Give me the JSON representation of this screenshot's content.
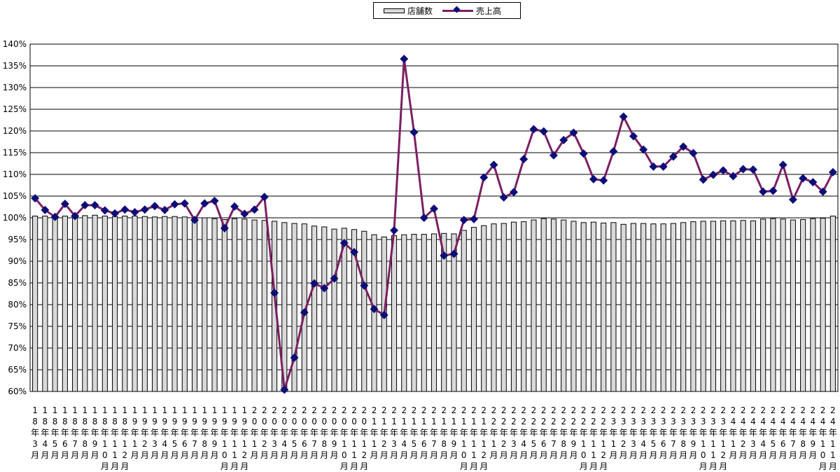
{
  "chart_data": {
    "type": "bar+line",
    "title": "",
    "xlabel": "",
    "ylabel": "",
    "ylim": [
      60,
      140
    ],
    "y_ticks": [
      "60%",
      "65%",
      "70%",
      "75%",
      "80%",
      "85%",
      "90%",
      "95%",
      "100%",
      "105%",
      "110%",
      "115%",
      "120%",
      "125%",
      "130%",
      "135%",
      "140%"
    ],
    "grid": true,
    "legend_position": "top-center",
    "colors": {
      "bar_fill": "#d9d9d9",
      "bar_stroke": "#000000",
      "line": "#7b1f62",
      "marker": "#0d0d78"
    },
    "categories": [
      "18年3月",
      "18年4月",
      "18年5月",
      "18年6月",
      "18年7月",
      "18年8月",
      "18年9月",
      "18年10月",
      "18年11月",
      "18年12月",
      "19年1月",
      "19年2月",
      "19年3月",
      "19年4月",
      "19年5月",
      "19年6月",
      "19年7月",
      "19年8月",
      "19年9月",
      "19年10月",
      "19年11月",
      "19年12月",
      "20年1月",
      "20年2月",
      "20年3月",
      "20年4月",
      "20年5月",
      "20年6月",
      "20年7月",
      "20年8月",
      "20年9月",
      "20年10月",
      "20年11月",
      "20年12月",
      "21年1月",
      "21年2月",
      "21年3月",
      "21年4月",
      "21年5月",
      "21年6月",
      "21年7月",
      "21年8月",
      "21年9月",
      "21年10月",
      "21年11月",
      "21年12月",
      "22年1月",
      "22年2月",
      "22年3月",
      "22年4月",
      "22年5月",
      "22年6月",
      "22年7月",
      "22年8月",
      "22年9月",
      "22年10月",
      "22年11月",
      "22年12月",
      "23年1月",
      "23年2月",
      "23年3月",
      "23年4月",
      "23年5月",
      "23年6月",
      "23年7月",
      "23年8月",
      "23年9月",
      "23年10月",
      "23年11月",
      "23年12月",
      "24年1月",
      "24年2月",
      "24年3月",
      "24年4月",
      "24年5月",
      "24年6月",
      "24年7月",
      "24年8月",
      "24年9月",
      "24年10月",
      "24年11月"
    ],
    "series": [
      {
        "name": "店舗数",
        "type": "bar",
        "values": [
          100.4,
          100.4,
          100.5,
          100.4,
          100.6,
          100.5,
          100.6,
          100.4,
          100.3,
          100.4,
          100.4,
          100.3,
          100.2,
          100.3,
          100.3,
          100.2,
          100.1,
          100.0,
          99.8,
          99.6,
          99.8,
          99.7,
          99.5,
          99.4,
          99.2,
          98.9,
          98.7,
          98.6,
          98.1,
          97.9,
          97.4,
          97.6,
          97.3,
          96.9,
          96.1,
          95.6,
          95.9,
          96.1,
          96.2,
          96.2,
          96.3,
          96.4,
          96.3,
          97.1,
          97.8,
          98.2,
          98.6,
          98.7,
          99.0,
          99.1,
          99.5,
          99.8,
          99.7,
          99.5,
          99.2,
          98.9,
          99.0,
          98.8,
          98.9,
          98.5,
          98.7,
          98.7,
          98.6,
          98.6,
          98.7,
          98.9,
          99.1,
          99.2,
          99.2,
          99.3,
          99.3,
          99.4,
          99.3,
          99.7,
          99.8,
          99.7,
          99.5,
          99.6,
          99.8,
          99.9,
          100.4
        ]
      },
      {
        "name": "売上高",
        "type": "line",
        "values": [
          104.5,
          101.8,
          100.2,
          103.2,
          100.4,
          102.9,
          102.9,
          101.7,
          101.0,
          101.9,
          101.3,
          101.9,
          102.7,
          101.8,
          103.1,
          103.3,
          99.5,
          103.3,
          103.9,
          97.6,
          102.6,
          100.9,
          101.9,
          104.8,
          82.7,
          60.4,
          67.8,
          78.2,
          84.9,
          83.8,
          86.0,
          94.2,
          92.1,
          84.4,
          79.0,
          77.6,
          97.1,
          136.6,
          119.7,
          100.0,
          102.1,
          91.3,
          91.7,
          99.5,
          99.7,
          109.3,
          112.2,
          104.7,
          105.9,
          113.5,
          120.4,
          119.9,
          114.4,
          117.9,
          119.6,
          114.8,
          108.9,
          108.6,
          115.3,
          123.3,
          118.8,
          115.7,
          111.8,
          111.8,
          114.1,
          116.4,
          114.9,
          108.8,
          109.9,
          110.9,
          109.6,
          111.2,
          111.1,
          106.0,
          106.2,
          112.2,
          104.2,
          109.1,
          108.2,
          106.0,
          110.5
        ]
      }
    ]
  }
}
